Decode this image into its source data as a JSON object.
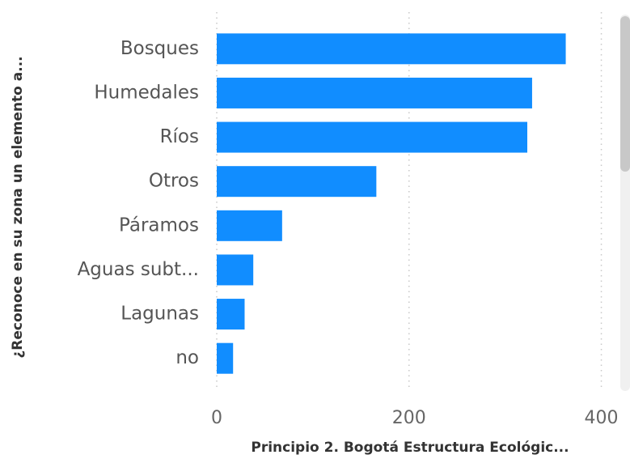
{
  "chart_data": {
    "type": "bar",
    "orientation": "horizontal",
    "x_label": "Principio 2. Bogotá Estructura Ecológic...",
    "y_label": "¿Reconoce en su zona un elemento a...",
    "categories": [
      "Bosques",
      "Humedales",
      "Ríos",
      "Otros",
      "Páramos",
      "Aguas subt...",
      "Lagunas",
      "no"
    ],
    "values": [
      363,
      328,
      323,
      166,
      68,
      38,
      29,
      17
    ],
    "color": "#118dff",
    "xlim": [
      0,
      413
    ],
    "xticks": [
      0,
      200,
      400
    ],
    "grid": true
  }
}
